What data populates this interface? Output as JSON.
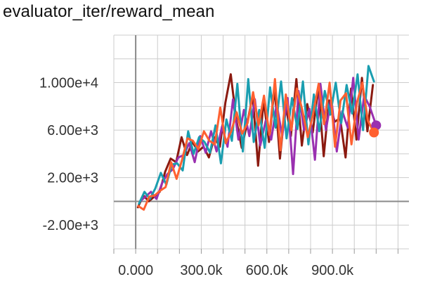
{
  "chart_data": {
    "type": "line",
    "title": "evaluator_iter/reward_mean",
    "xlabel": "",
    "ylabel": "",
    "xlim": [
      -100000,
      1250000
    ],
    "ylim": [
      -4000,
      14000
    ],
    "x_ticks": [
      {
        "value": 0,
        "label": "0.000"
      },
      {
        "value": 300000,
        "label": "300.0k"
      },
      {
        "value": 600000,
        "label": "600.0k"
      },
      {
        "value": 900000,
        "label": "900.0k"
      }
    ],
    "y_ticks": [
      {
        "value": 10000,
        "label": "1.000e+4"
      },
      {
        "value": 6000,
        "label": "6.00e+3"
      },
      {
        "value": 2000,
        "label": "2.00e+3"
      },
      {
        "value": -2000,
        "label": "-2.00e+3"
      }
    ],
    "grid": true,
    "legend": "none",
    "series": [
      {
        "color": "#8b1a10",
        "end_marker": false,
        "x": [
          10000,
          35000,
          60000,
          85000,
          110000,
          135000,
          160000,
          185000,
          210000,
          235000,
          260000,
          285000,
          310000,
          335000,
          360000,
          385000,
          410000,
          435000,
          460000,
          485000,
          510000,
          535000,
          560000,
          585000,
          610000,
          635000,
          660000,
          685000,
          710000,
          735000,
          760000,
          785000,
          810000,
          835000,
          860000,
          885000,
          910000,
          935000,
          960000,
          985000,
          1010000,
          1035000,
          1060000,
          1085000
        ],
        "y": [
          -500,
          500,
          0,
          400,
          800,
          2500,
          3600,
          3300,
          5400,
          3900,
          5000,
          4200,
          4600,
          3700,
          5400,
          4600,
          8300,
          10700,
          6900,
          4500,
          6600,
          8900,
          3000,
          8500,
          5000,
          9600,
          3600,
          8300,
          5500,
          10300,
          4700,
          8200,
          5800,
          9600,
          3800,
          8500,
          6700,
          7000,
          3700,
          9500,
          5200,
          10400,
          5900,
          9800
        ]
      },
      {
        "color": "#9a30b0",
        "end_marker": true,
        "x": [
          20000,
          45000,
          70000,
          95000,
          120000,
          145000,
          170000,
          195000,
          220000,
          245000,
          270000,
          295000,
          320000,
          345000,
          370000,
          395000,
          420000,
          445000,
          470000,
          495000,
          520000,
          545000,
          570000,
          595000,
          620000,
          645000,
          670000,
          695000,
          720000,
          745000,
          770000,
          795000,
          820000,
          845000,
          870000,
          895000,
          920000,
          945000,
          970000,
          995000,
          1020000,
          1045000,
          1070000,
          1100000
        ],
        "y": [
          0,
          400,
          800,
          200,
          1500,
          2300,
          2700,
          3700,
          3900,
          4900,
          3300,
          5500,
          4100,
          5900,
          4200,
          6300,
          4600,
          8600,
          5200,
          7700,
          5500,
          8600,
          4700,
          6800,
          5200,
          8200,
          5500,
          8700,
          2300,
          9300,
          6000,
          7800,
          3500,
          9900,
          6000,
          8700,
          4200,
          7600,
          6200,
          10400,
          5200,
          8900,
          8000,
          6400
        ]
      },
      {
        "color": "#1a9eb0",
        "end_marker": false,
        "x": [
          15000,
          40000,
          65000,
          90000,
          115000,
          140000,
          165000,
          190000,
          215000,
          240000,
          265000,
          290000,
          315000,
          340000,
          365000,
          390000,
          415000,
          440000,
          465000,
          490000,
          515000,
          540000,
          565000,
          590000,
          615000,
          640000,
          665000,
          690000,
          715000,
          740000,
          765000,
          790000,
          815000,
          840000,
          865000,
          890000,
          915000,
          940000,
          965000,
          990000,
          1015000,
          1040000,
          1065000,
          1090000
        ],
        "y": [
          -200,
          800,
          200,
          1100,
          2400,
          1400,
          3100,
          3200,
          2600,
          5900,
          4000,
          5400,
          5000,
          4100,
          6400,
          3200,
          6900,
          5100,
          9900,
          4200,
          10300,
          5000,
          7700,
          4500,
          9600,
          6200,
          10100,
          5300,
          8700,
          6100,
          10100,
          4800,
          9000,
          5900,
          9300,
          7300,
          10000,
          6600,
          9800,
          7400,
          10700,
          6000,
          11400,
          10100
        ]
      },
      {
        "color": "#ff6030",
        "end_marker": true,
        "x": [
          12000,
          37000,
          62000,
          87000,
          112000,
          137000,
          162000,
          187000,
          212000,
          237000,
          262000,
          287000,
          312000,
          337000,
          362000,
          387000,
          412000,
          437000,
          462000,
          487000,
          512000,
          537000,
          562000,
          587000,
          612000,
          637000,
          662000,
          687000,
          712000,
          737000,
          762000,
          787000,
          812000,
          837000,
          862000,
          887000,
          912000,
          937000,
          962000,
          987000,
          1012000,
          1037000,
          1062000,
          1090000
        ],
        "y": [
          -400,
          -700,
          400,
          500,
          900,
          1200,
          3300,
          1900,
          3500,
          5300,
          5100,
          4400,
          5900,
          5100,
          4800,
          7900,
          4900,
          5900,
          7500,
          5700,
          6600,
          9200,
          6400,
          8900,
          5600,
          10300,
          4300,
          9000,
          6000,
          9500,
          7700,
          5400,
          7400,
          9900,
          6500,
          10000,
          4600,
          8500,
          9100,
          4800,
          8300,
          10000,
          6800,
          5800
        ]
      }
    ]
  }
}
